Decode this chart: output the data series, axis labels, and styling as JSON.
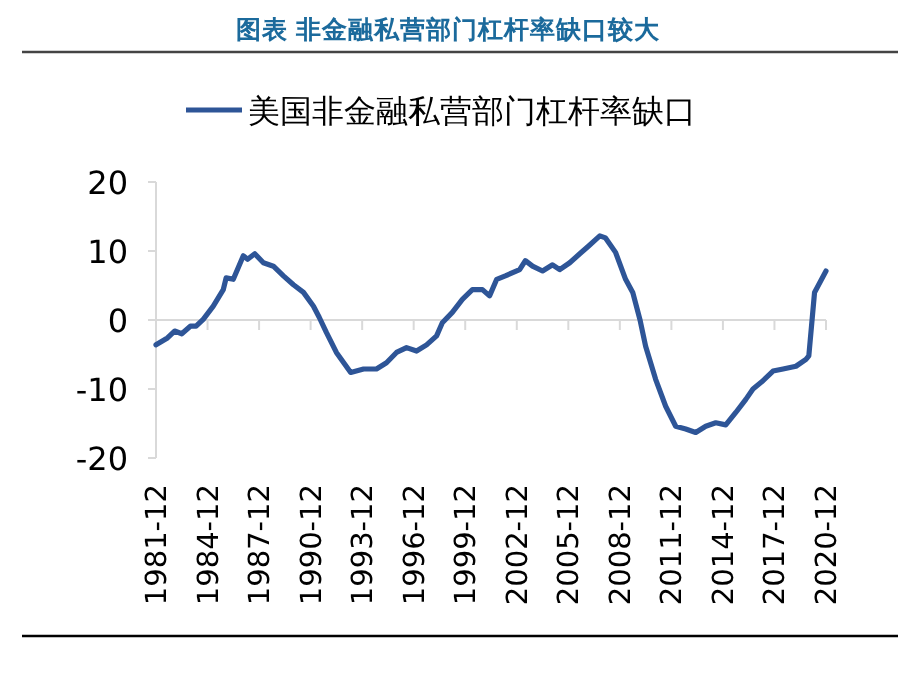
{
  "chart_data": {
    "type": "line",
    "title": "图表 非金融私营部门杠杆率缺口较大",
    "x": [
      "1981-12",
      "1982-08",
      "1983-01",
      "1983-06",
      "1983-12",
      "1984-04",
      "1984-09",
      "1985-04",
      "1985-11",
      "1986-01",
      "1986-06",
      "1987-01",
      "1987-04",
      "1987-09",
      "1988-03",
      "1988-10",
      "1989-05",
      "1989-12",
      "1990-07",
      "1991-02",
      "1991-06",
      "1991-11",
      "1992-06",
      "1993-04",
      "1994-01",
      "1994-10",
      "1995-05",
      "1995-12",
      "1996-07",
      "1997-02",
      "1997-09",
      "1998-04",
      "1998-08",
      "1999-03",
      "1999-10",
      "2000-05",
      "2000-12",
      "2001-05",
      "2001-10",
      "2002-04",
      "2003-02",
      "2003-06",
      "2003-11",
      "2004-06",
      "2005-01",
      "2005-06",
      "2006-01",
      "2006-08",
      "2007-02",
      "2007-10",
      "2008-02",
      "2008-09",
      "2009-04",
      "2009-09",
      "2010-02",
      "2010-06",
      "2011-01",
      "2011-08",
      "2012-03",
      "2012-10",
      "2013-05",
      "2013-12",
      "2014-07",
      "2015-02",
      "2015-09",
      "2016-04",
      "2016-09",
      "2017-04",
      "2017-11",
      "2018-06",
      "2019-03",
      "2019-10",
      "2019-12",
      "2020-04",
      "2020-12"
    ],
    "series": [
      {
        "name": "美国非金融私营部门杠杆率缺口",
        "color": "#2e5597",
        "values": [
          -3.6,
          -2.6,
          -1.6,
          -2,
          -0.9,
          -0.9,
          0.1,
          2,
          4.4,
          6.1,
          5.9,
          9.3,
          8.8,
          9.6,
          8.3,
          7.8,
          6.4,
          5.1,
          4,
          2,
          0.4,
          -1.8,
          -4.7,
          -7.6,
          -7.1,
          -7.1,
          -6.2,
          -4.7,
          -4,
          -4.5,
          -3.6,
          -2.3,
          -0.4,
          1.1,
          3,
          4.4,
          4.4,
          3.5,
          5.9,
          6.4,
          7.3,
          8.6,
          7.8,
          7.1,
          8,
          7.3,
          8.3,
          9.6,
          10.7,
          12.2,
          11.9,
          9.8,
          5.9,
          4,
          0.1,
          -3.8,
          -8.6,
          -12.5,
          -15.4,
          -15.8,
          -16.3,
          -15.4,
          -14.9,
          -15.2,
          -13.4,
          -11.5,
          -10,
          -8.8,
          -7.4,
          -7.1,
          -6.7,
          -5.7,
          -5.2,
          4,
          7.1
        ]
      }
    ],
    "xlim": [
      "1981-12",
      "2020-12"
    ],
    "xticks": [
      "1981-12",
      "1984-12",
      "1987-12",
      "1990-12",
      "1993-12",
      "1996-12",
      "1999-12",
      "2002-12",
      "2005-12",
      "2008-12",
      "2011-12",
      "2014-12",
      "2017-12",
      "2020-12"
    ],
    "ylim": [
      -20,
      20
    ],
    "yticks": [
      -20,
      -10,
      0,
      10,
      20
    ],
    "legend": "top",
    "marker": "none",
    "line_style": "solid"
  }
}
